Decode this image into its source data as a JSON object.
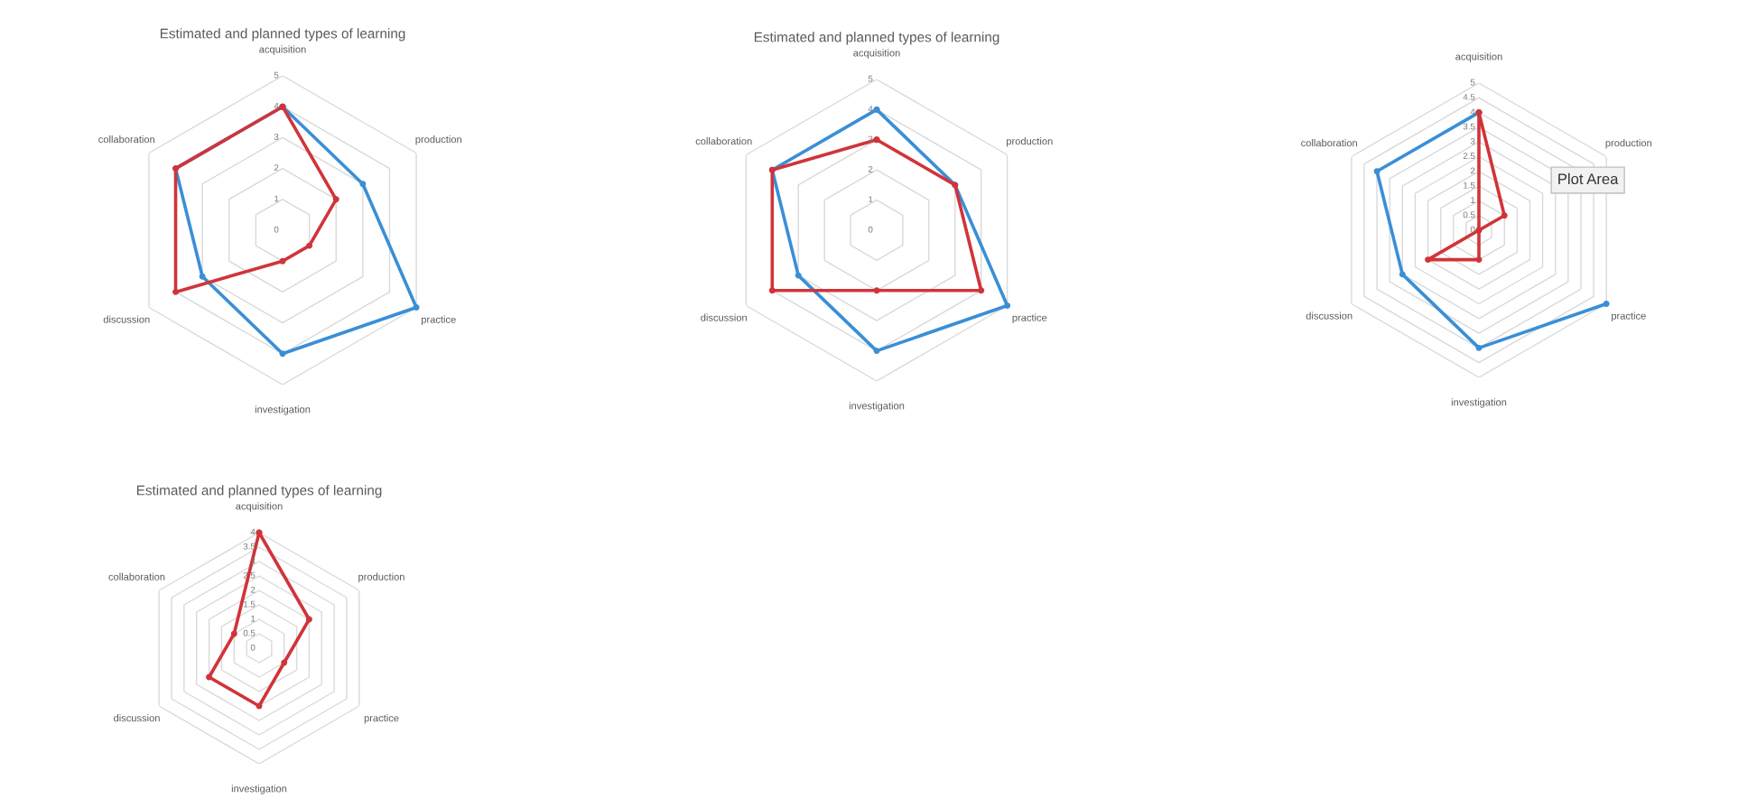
{
  "chart_data": [
    {
      "type": "radar",
      "title": "Estimated and planned types of learning",
      "categories": [
        "acquisition",
        "production",
        "practice",
        "investigation",
        "discussion",
        "collaboration"
      ],
      "ylim": [
        0,
        5
      ],
      "yticks": [
        0,
        1,
        2,
        3,
        4,
        5
      ],
      "grid": true,
      "marker": "circle",
      "series": [
        {
          "color": "#3a8fd6",
          "values": [
            4,
            3,
            5,
            4,
            3,
            4
          ]
        },
        {
          "color": "#d0343a",
          "values": [
            4,
            2,
            1,
            1,
            4,
            4
          ]
        }
      ]
    },
    {
      "type": "radar",
      "title": "Estimated and planned types of learning",
      "categories": [
        "acquisition",
        "production",
        "practice",
        "investigation",
        "discussion",
        "collaboration"
      ],
      "ylim": [
        0,
        5
      ],
      "yticks": [
        0,
        1,
        2,
        3,
        4,
        5
      ],
      "grid": true,
      "marker": "circle",
      "series": [
        {
          "color": "#3a8fd6",
          "values": [
            4,
            3,
            5,
            4,
            3,
            4
          ]
        },
        {
          "color": "#d0343a",
          "values": [
            3,
            3,
            4,
            2,
            4,
            4
          ]
        }
      ]
    },
    {
      "type": "radar",
      "categories": [
        "acquisition",
        "production",
        "practice",
        "investigation",
        "discussion",
        "collaboration"
      ],
      "ylim": [
        0,
        5
      ],
      "yticks": [
        0,
        0.5,
        1,
        1.5,
        2,
        2.5,
        3,
        3.5,
        4,
        4.5,
        5
      ],
      "grid": true,
      "marker": "circle",
      "annotations": [
        "Plot Area"
      ],
      "series": [
        {
          "color": "#3a8fd6",
          "values": [
            4,
            null,
            5,
            4,
            3,
            4
          ]
        },
        {
          "color": "#d0343a",
          "values": [
            4,
            1,
            0,
            1,
            2,
            0
          ]
        }
      ]
    },
    {
      "type": "radar",
      "title": "Estimated and planned types of learning",
      "categories": [
        "acquisition",
        "production",
        "practice",
        "investigation",
        "discussion",
        "collaboration"
      ],
      "ylim": [
        0,
        4
      ],
      "yticks": [
        0,
        0.5,
        1,
        1.5,
        2,
        2.5,
        3,
        3.5,
        4
      ],
      "grid": true,
      "marker": "circle",
      "series": [
        {
          "color": "#d0343a",
          "values": [
            4,
            2,
            1,
            2,
            2,
            1
          ]
        }
      ]
    }
  ]
}
